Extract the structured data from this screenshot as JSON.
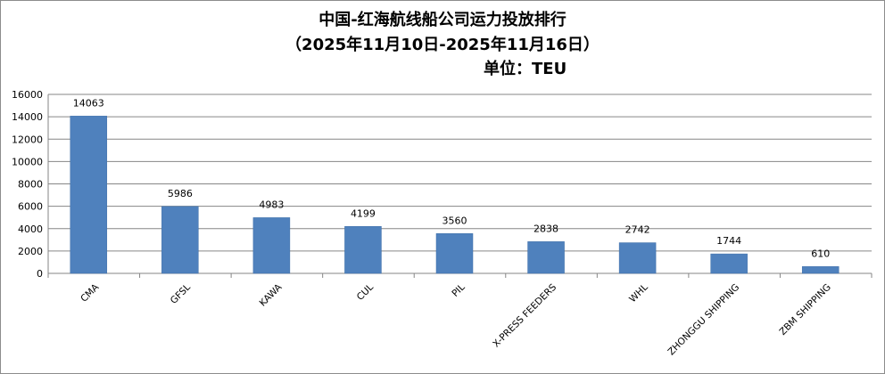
{
  "chart_data": {
    "type": "bar",
    "title": "中国-红海航线船公司运力投放排行",
    "subtitle": "（2025年11月10日-2025年11月16日）",
    "unit_label": "单位：TEU",
    "categories": [
      "CMA",
      "GFSL",
      "KAWA",
      "CUL",
      "PIL",
      "X-PRESS FEEDERS",
      "WHL",
      "ZHONGGU SHIPPING",
      "ZBM SHIPPING"
    ],
    "values": [
      14063,
      5986,
      4983,
      4199,
      3560,
      2838,
      2742,
      1744,
      610
    ],
    "data_labels": [
      "14063",
      "5986",
      "4983",
      "4199",
      "3560",
      "2838",
      "2742",
      "1744",
      "610"
    ],
    "ylim": [
      0,
      16000
    ],
    "yticks": [
      "0",
      "2000",
      "4000",
      "6000",
      "8000",
      "10000",
      "12000",
      "14000",
      "16000"
    ],
    "grid": true,
    "legend": "none",
    "bar_color": "#4f81bd"
  }
}
